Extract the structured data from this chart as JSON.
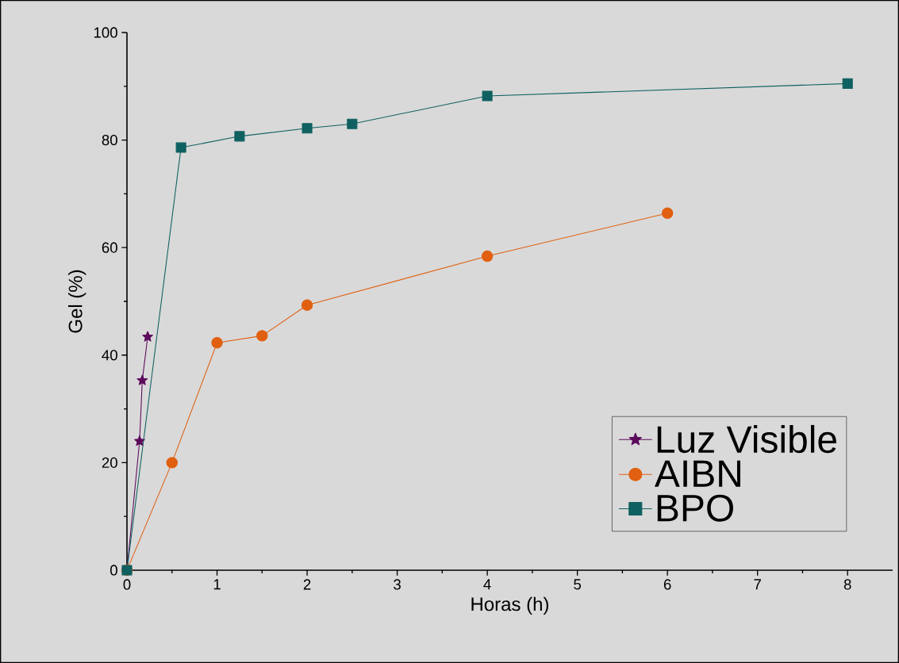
{
  "chart_data": {
    "type": "line",
    "xlabel": "Horas (h)",
    "ylabel": "Gel (%)",
    "xlim": [
      0,
      8.5
    ],
    "ylim": [
      0,
      100
    ],
    "xticks": [
      0,
      1,
      2,
      3,
      4,
      5,
      6,
      7,
      8
    ],
    "yticks": [
      0,
      20,
      40,
      60,
      80,
      100
    ],
    "legend": "bottom right",
    "grid": false,
    "series": [
      {
        "name": "Luz Visible",
        "color": "#5c0a5c",
        "marker": "star",
        "x": [
          0,
          0.14,
          0.17,
          0.23
        ],
        "values": [
          0,
          24,
          35.3,
          43.4
        ]
      },
      {
        "name": "AIBN",
        "color": "#e06010",
        "marker": "circle",
        "x": [
          0,
          0.5,
          1,
          1.5,
          2,
          4,
          6
        ],
        "values": [
          0,
          20,
          42.3,
          43.6,
          49.3,
          58.4,
          66.4
        ]
      },
      {
        "name": "BPO",
        "color": "#0f6060",
        "marker": "square",
        "x": [
          0,
          0.6,
          1.25,
          2,
          2.5,
          4,
          8
        ],
        "values": [
          0,
          78.6,
          80.7,
          82.2,
          83,
          88.2,
          90.5
        ]
      }
    ]
  }
}
